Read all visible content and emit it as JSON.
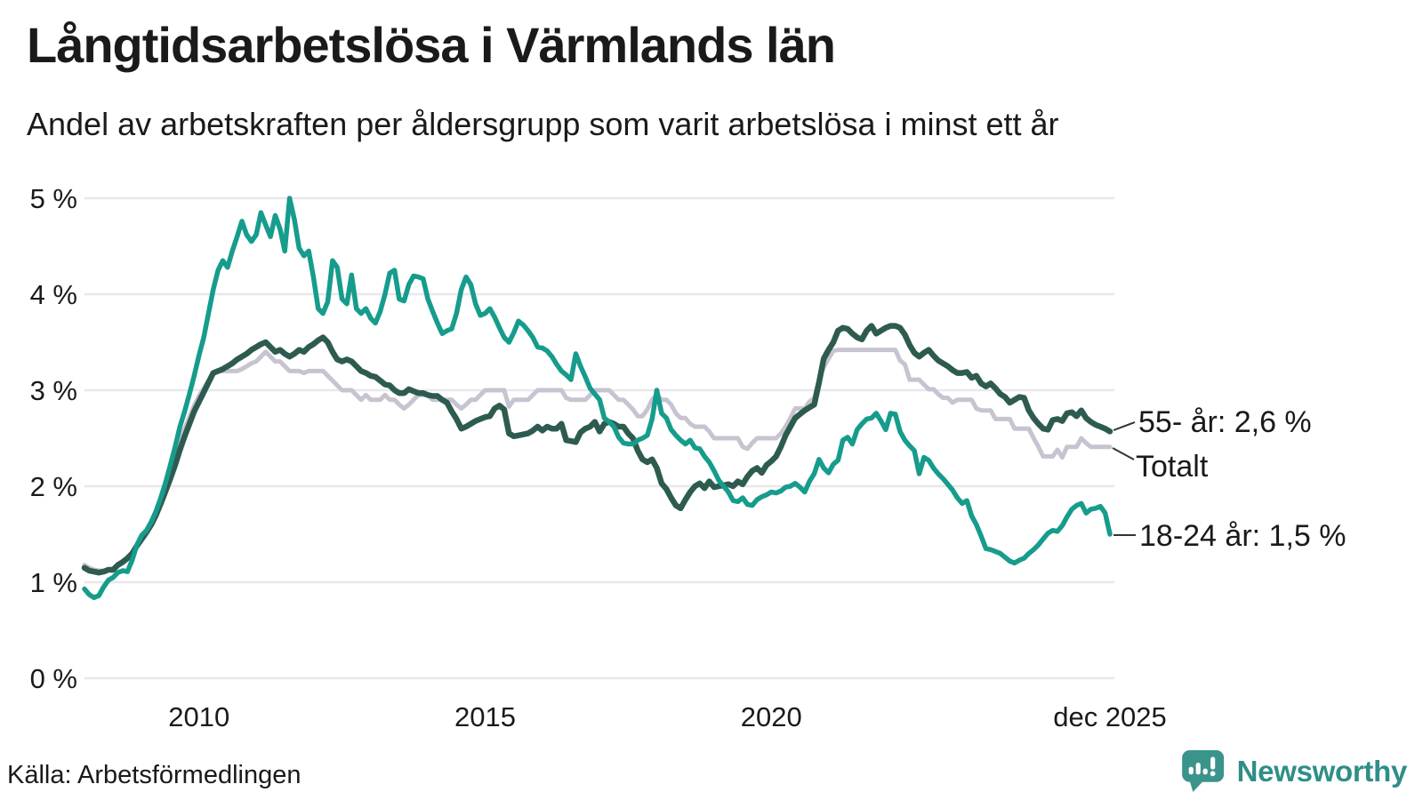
{
  "header": {
    "title": "Långtidsarbetslösa i Värmlands län",
    "subtitle": "Andel av arbetskraften per åldersgrupp som varit arbetslösa i minst ett år"
  },
  "footer": {
    "source": "Källa: Arbetsförmedlingen",
    "brand": "Newsworthy"
  },
  "colors": {
    "series_55": "#2e5b50",
    "series_total": "#c7c4d1",
    "series_18_24": "#169c8c",
    "gridline": "#e8e7ec",
    "text": "#1a1a1a",
    "brand_teal": "#2e8f87",
    "logo_teal": "#3b948c"
  },
  "chart_data": {
    "type": "line",
    "title": "Långtidsarbetslösa i Värmlands län",
    "subtitle": "Andel av arbetskraften per åldersgrupp som varit arbetslösa i minst ett år",
    "unit": "% av arbetskraften",
    "frequency": "monthly",
    "x_start": "2008-01",
    "x_end": "2025-12",
    "grid": true,
    "legend_position": "line-end-labels",
    "y_axis": {
      "range": [
        0,
        5
      ],
      "ticks": [
        {
          "value": 5,
          "label": "5 %"
        },
        {
          "value": 4,
          "label": "4 %"
        },
        {
          "value": 3,
          "label": "3 %"
        },
        {
          "value": 2,
          "label": "2 %"
        },
        {
          "value": 1,
          "label": "1 %"
        },
        {
          "value": 0,
          "label": "0 %"
        }
      ]
    },
    "x_axis": {
      "ticks": [
        {
          "label": "2010",
          "month": 24
        },
        {
          "label": "2015",
          "month": 84
        },
        {
          "label": "2020",
          "month": 144
        },
        {
          "label": "dec 2025",
          "month": 215
        }
      ]
    },
    "series": [
      {
        "id": "age-55-plus",
        "name": "55- år",
        "end_label": "55- år: 2,6 %",
        "end_value": "2,6 %",
        "color": "#2e5b50",
        "values_by_year": [
          [
            1.15,
            1.12,
            1.11,
            1.1,
            1.11,
            1.13,
            1.13,
            1.18,
            1.21,
            1.25,
            1.3,
            1.38
          ],
          [
            1.45,
            1.52,
            1.6,
            1.7,
            1.82,
            1.95,
            2.08,
            2.22,
            2.38,
            2.52,
            2.65,
            2.78
          ],
          [
            2.88,
            2.98,
            3.08,
            3.18,
            3.2,
            3.22,
            3.25,
            3.28,
            3.32,
            3.35,
            3.38,
            3.42
          ],
          [
            3.45,
            3.48,
            3.5,
            3.45,
            3.4,
            3.42,
            3.38,
            3.35,
            3.38,
            3.42,
            3.4,
            3.45
          ],
          [
            3.48,
            3.52,
            3.55,
            3.5,
            3.4,
            3.32,
            3.3,
            3.32,
            3.3,
            3.25,
            3.2,
            3.18
          ],
          [
            3.15,
            3.14,
            3.1,
            3.06,
            3.05,
            3.0,
            2.97,
            2.97,
            3.01,
            2.99,
            2.97,
            2.97
          ],
          [
            2.95,
            2.94,
            2.94,
            2.9,
            2.87,
            2.78,
            2.7,
            2.6,
            2.62,
            2.65,
            2.68,
            2.7
          ],
          [
            2.72,
            2.73,
            2.81,
            2.84,
            2.8,
            2.55,
            2.52,
            2.53,
            2.54,
            2.55,
            2.58,
            2.62
          ],
          [
            2.58,
            2.62,
            2.6,
            2.6,
            2.65,
            2.48,
            2.47,
            2.46,
            2.56,
            2.6,
            2.62,
            2.67
          ],
          [
            2.57,
            2.65,
            2.67,
            2.65,
            2.62,
            2.62,
            2.55,
            2.5,
            2.37,
            2.28,
            2.25,
            2.28
          ],
          [
            2.19,
            2.03,
            1.97,
            1.88,
            1.8,
            1.77,
            1.86,
            1.94,
            2.0,
            2.03,
            1.98,
            2.05
          ],
          [
            1.99,
            2.0,
            2.01,
            2.02,
            2.0,
            2.05,
            2.02,
            2.1,
            2.16,
            2.19,
            2.14,
            2.22
          ],
          [
            2.26,
            2.31,
            2.41,
            2.53,
            2.62,
            2.71,
            2.75,
            2.79,
            2.82,
            2.85,
            3.08,
            3.33
          ],
          [
            3.42,
            3.5,
            3.62,
            3.65,
            3.64,
            3.59,
            3.55,
            3.53,
            3.62,
            3.67,
            3.59,
            3.62
          ],
          [
            3.65,
            3.67,
            3.67,
            3.65,
            3.58,
            3.47,
            3.39,
            3.35,
            3.39,
            3.42,
            3.36,
            3.31
          ],
          [
            3.28,
            3.25,
            3.21,
            3.18,
            3.18,
            3.19,
            3.13,
            3.15,
            3.07,
            3.04,
            3.07,
            3.02
          ],
          [
            2.96,
            2.93,
            2.87,
            2.9,
            2.93,
            2.92,
            2.79,
            2.71,
            2.65,
            2.6,
            2.59,
            2.69
          ],
          [
            2.7,
            2.68,
            2.76,
            2.77,
            2.73,
            2.79,
            2.71,
            2.67,
            2.64,
            2.62,
            2.6,
            2.57
          ]
        ]
      },
      {
        "id": "total",
        "name": "Totalt",
        "end_label": "Totalt",
        "end_value": "2,4 %",
        "color": "#c7c4d1",
        "values_by_year": [
          [
            1.18,
            1.15,
            1.13,
            1.12,
            1.12,
            1.13,
            1.14,
            1.17,
            1.2,
            1.24,
            1.3,
            1.38
          ],
          [
            1.46,
            1.53,
            1.62,
            1.73,
            1.86,
            2.0,
            2.14,
            2.3,
            2.46,
            2.6,
            2.72,
            2.84
          ],
          [
            2.94,
            3.02,
            3.1,
            3.17,
            3.2,
            3.2,
            3.2,
            3.2,
            3.2,
            3.22,
            3.25,
            3.28
          ],
          [
            3.3,
            3.35,
            3.4,
            3.35,
            3.3,
            3.3,
            3.25,
            3.2,
            3.2,
            3.2,
            3.18,
            3.2
          ],
          [
            3.2,
            3.2,
            3.2,
            3.15,
            3.1,
            3.05,
            3.0,
            3.0,
            3.0,
            2.95,
            2.9,
            2.95
          ],
          [
            2.9,
            2.9,
            2.9,
            2.95,
            2.9,
            2.9,
            2.85,
            2.81,
            2.85,
            2.9,
            2.95,
            2.95
          ],
          [
            2.95,
            2.9,
            2.9,
            2.9,
            2.9,
            2.9,
            2.85,
            2.81,
            2.85,
            2.9,
            2.9,
            2.95
          ],
          [
            3.0,
            3.0,
            3.0,
            3.0,
            3.0,
            2.83,
            2.9,
            2.9,
            2.9,
            2.9,
            2.95,
            3.0
          ],
          [
            3.0,
            3.0,
            3.0,
            3.0,
            3.0,
            2.92,
            2.9,
            2.9,
            2.9,
            2.9,
            2.95,
            3.0
          ],
          [
            3.0,
            3.0,
            3.0,
            2.95,
            2.9,
            2.9,
            2.85,
            2.8,
            2.73,
            2.73,
            2.8,
            2.9
          ],
          [
            2.95,
            2.9,
            2.9,
            2.85,
            2.76,
            2.71,
            2.71,
            2.65,
            2.62,
            2.62,
            2.62,
            2.57
          ],
          [
            2.5,
            2.5,
            2.5,
            2.5,
            2.5,
            2.5,
            2.41,
            2.39,
            2.45,
            2.5,
            2.5,
            2.5
          ],
          [
            2.5,
            2.5,
            2.55,
            2.62,
            2.71,
            2.81,
            2.81,
            2.81,
            2.88,
            2.92,
            3.11,
            3.24
          ],
          [
            3.33,
            3.41,
            3.42,
            3.42,
            3.42,
            3.42,
            3.42,
            3.42,
            3.42,
            3.42,
            3.42,
            3.42
          ],
          [
            3.42,
            3.42,
            3.42,
            3.31,
            3.27,
            3.11,
            3.11,
            3.11,
            3.06,
            3.01,
            3.01,
            2.96
          ],
          [
            2.92,
            2.92,
            2.87,
            2.9,
            2.9,
            2.9,
            2.9,
            2.81,
            2.79,
            2.79,
            2.79,
            2.7
          ],
          [
            2.7,
            2.7,
            2.7,
            2.6,
            2.6,
            2.6,
            2.6,
            2.5,
            2.41,
            2.31,
            2.31,
            2.31
          ],
          [
            2.38,
            2.3,
            2.41,
            2.41,
            2.41,
            2.5,
            2.45,
            2.41,
            2.41,
            2.41,
            2.41,
            2.41
          ]
        ]
      },
      {
        "id": "age-18-24",
        "name": "18-24 år",
        "end_label": "18-24 år: 1,5 %",
        "end_value": "1,5 %",
        "color": "#169c8c",
        "values_by_year": [
          [
            0.93,
            0.87,
            0.84,
            0.86,
            0.95,
            1.02,
            1.05,
            1.1,
            1.12,
            1.11,
            1.23,
            1.39
          ],
          [
            1.49,
            1.54,
            1.63,
            1.74,
            1.88,
            2.04,
            2.22,
            2.41,
            2.62,
            2.78,
            2.96,
            3.15
          ],
          [
            3.36,
            3.55,
            3.8,
            4.05,
            4.25,
            4.35,
            4.28,
            4.45,
            4.6,
            4.76,
            4.62,
            4.55
          ],
          [
            4.62,
            4.85,
            4.72,
            4.6,
            4.82,
            4.68,
            4.45,
            5.0,
            4.78,
            4.48,
            4.4,
            4.45
          ],
          [
            4.18,
            3.85,
            3.8,
            3.92,
            4.35,
            4.28,
            3.95,
            3.9,
            4.2,
            3.85,
            3.8,
            3.85
          ],
          [
            3.75,
            3.7,
            3.82,
            4.0,
            4.22,
            4.25,
            3.95,
            3.93,
            4.1,
            4.19,
            4.18,
            4.16
          ],
          [
            3.95,
            3.82,
            3.7,
            3.59,
            3.62,
            3.64,
            3.8,
            4.05,
            4.18,
            4.1,
            3.9,
            3.78
          ],
          [
            3.8,
            3.85,
            3.76,
            3.65,
            3.55,
            3.5,
            3.6,
            3.72,
            3.68,
            3.62,
            3.55,
            3.45
          ],
          [
            3.44,
            3.41,
            3.35,
            3.27,
            3.2,
            3.16,
            3.11,
            3.38,
            3.25,
            3.14,
            3.02,
            2.96
          ],
          [
            2.9,
            2.71,
            2.67,
            2.62,
            2.51,
            2.45,
            2.44,
            2.44,
            2.48,
            2.5,
            2.53,
            2.7
          ],
          [
            3.0,
            2.76,
            2.71,
            2.59,
            2.53,
            2.48,
            2.44,
            2.48,
            2.4,
            2.39,
            2.31,
            2.25
          ],
          [
            2.16,
            2.06,
            2.0,
            1.94,
            1.85,
            1.84,
            1.88,
            1.81,
            1.8,
            1.86,
            1.89,
            1.91
          ],
          [
            1.94,
            1.93,
            1.95,
            1.99,
            2.0,
            2.03,
            1.99,
            1.94,
            2.05,
            2.13,
            2.28,
            2.19
          ],
          [
            2.14,
            2.23,
            2.27,
            2.48,
            2.51,
            2.44,
            2.59,
            2.65,
            2.7,
            2.71,
            2.76,
            2.68
          ],
          [
            2.59,
            2.76,
            2.75,
            2.57,
            2.48,
            2.42,
            2.37,
            2.13,
            2.3,
            2.27,
            2.19,
            2.13
          ],
          [
            2.08,
            2.02,
            1.96,
            1.88,
            1.82,
            1.85,
            1.69,
            1.6,
            1.48,
            1.35,
            1.34,
            1.32
          ],
          [
            1.3,
            1.26,
            1.22,
            1.2,
            1.23,
            1.25,
            1.3,
            1.34,
            1.39,
            1.45,
            1.51,
            1.54
          ],
          [
            1.53,
            1.59,
            1.68,
            1.76,
            1.8,
            1.82,
            1.72,
            1.76,
            1.77,
            1.79,
            1.72,
            1.5
          ]
        ]
      }
    ]
  }
}
